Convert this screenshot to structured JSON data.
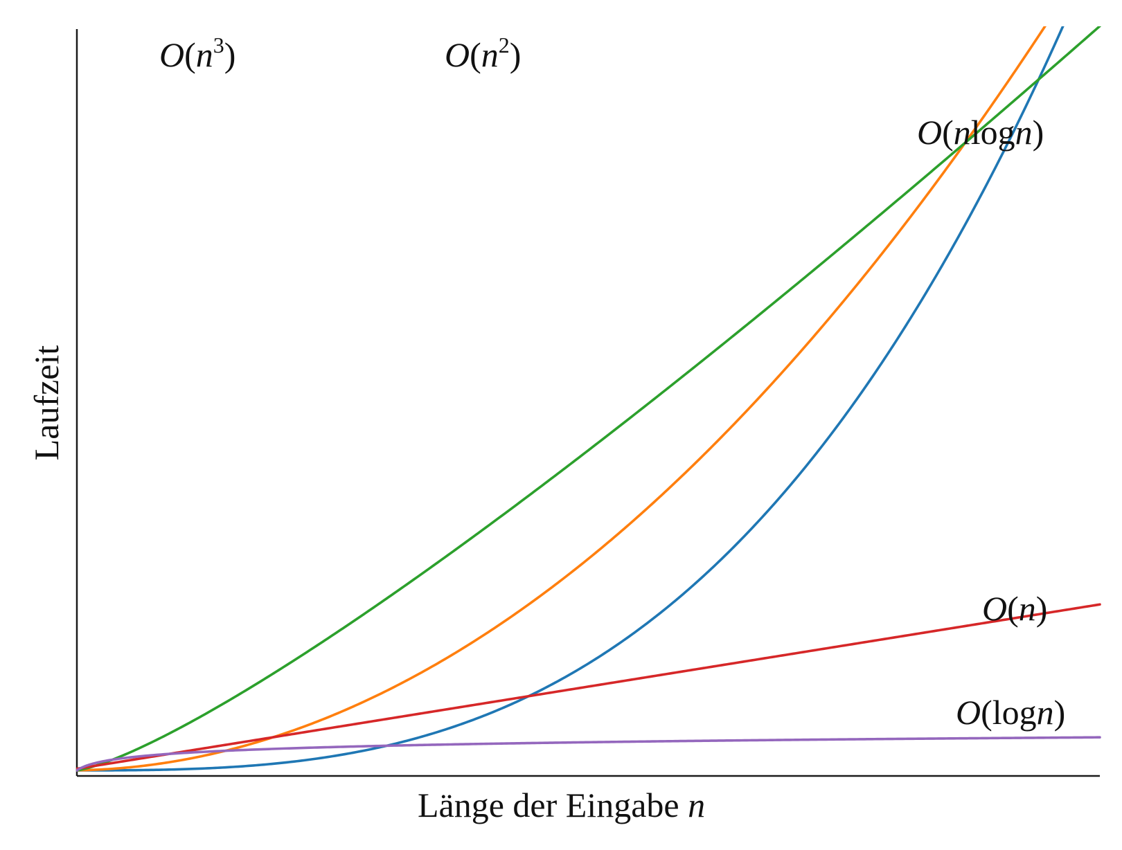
{
  "chart_data": {
    "type": "line",
    "title": "",
    "xlabel": {
      "text": "Länge der Eingabe ",
      "var": "n"
    },
    "ylabel": "Laufzeit",
    "x_range": [
      1,
      100
    ],
    "y_range": [
      0,
      900
    ],
    "grid": false,
    "legend": "none",
    "series": [
      {
        "key": "cubic",
        "label_parts": [
          "O",
          "(",
          "n",
          "3",
          ")"
        ],
        "color": "#1f77b4",
        "func": "n^3/1000"
      },
      {
        "key": "quadratic",
        "label_parts": [
          "O",
          "(",
          "n",
          "2",
          ")"
        ],
        "color": "#ff7f0e",
        "func": "n^2/10"
      },
      {
        "key": "nlogn",
        "label_parts": [
          "O",
          "(",
          "n",
          "log",
          "n",
          ")"
        ],
        "color": "#2ca02c",
        "func": "n*log2(n)*1.35"
      },
      {
        "key": "linear",
        "label_parts": [
          "O",
          "(",
          "n",
          ")"
        ],
        "color": "#d62728",
        "func": "2*n"
      },
      {
        "key": "log",
        "label_parts": [
          "O",
          "(",
          "log",
          "n",
          ")"
        ],
        "color": "#9467bd",
        "func": "6*log2(n)"
      }
    ]
  }
}
